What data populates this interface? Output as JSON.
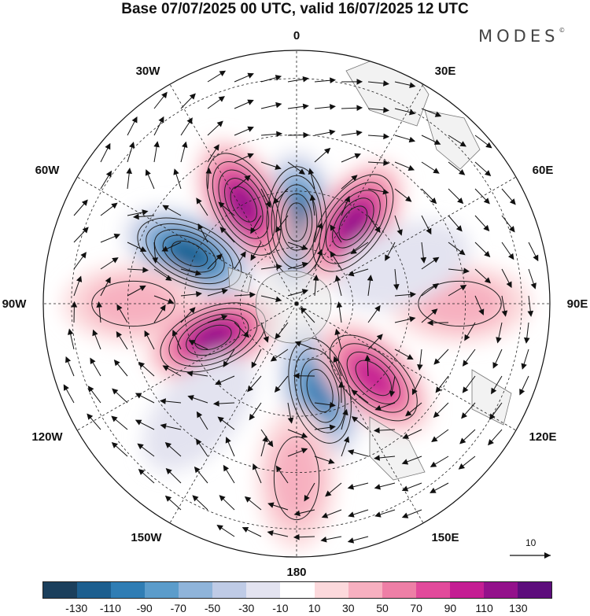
{
  "title": "Base 07/07/2025 00 UTC, valid 16/07/2025 12 UTC",
  "brand": {
    "name": "MODES",
    "mark": "©"
  },
  "longitude_labels": {
    "top": "0",
    "top_right": "30E",
    "right_upper": "60E",
    "right": "90E",
    "right_lower": "120E",
    "bottom_right": "150E",
    "bottom": "180",
    "bottom_left": "150W",
    "left_lower": "120W",
    "left": "90W",
    "left_upper": "60W",
    "top_left": "30W"
  },
  "vector_reference": {
    "value": "10"
  },
  "colorbar": {
    "colors": [
      "#1b3f5c",
      "#1d5f8f",
      "#2f7db4",
      "#5b9ccb",
      "#8fb4da",
      "#bfcbe6",
      "#e3e3f0",
      "#ffffff",
      "#fcd9dc",
      "#f7b0c0",
      "#ee7fa6",
      "#e24a9b",
      "#c41e93",
      "#93118b",
      "#5d0d7c"
    ],
    "tick_labels": [
      "-130",
      "-110",
      "-90",
      "-70",
      "-50",
      "-30",
      "-10",
      "10",
      "30",
      "50",
      "70",
      "90",
      "110",
      "130"
    ]
  },
  "anomaly_centers": [
    {
      "lon": 0,
      "colat": 29,
      "value": -120
    },
    {
      "lon": 35,
      "colat": 35,
      "value": 115
    },
    {
      "lon": -28,
      "colat": 40,
      "value": 125
    },
    {
      "lon": -65,
      "colat": 42,
      "value": -120
    },
    {
      "lon": -90,
      "colat": 58,
      "value": 45
    },
    {
      "lon": -112,
      "colat": 32,
      "value": 110
    },
    {
      "lon": 165,
      "colat": 32,
      "value": -105
    },
    {
      "lon": 134,
      "colat": 38,
      "value": 100
    },
    {
      "lon": 90,
      "colat": 58,
      "value": 45
    },
    {
      "lon": 180,
      "colat": 62,
      "value": 40
    },
    {
      "lon": 70,
      "colat": 40,
      "value": -25
    },
    {
      "lon": -138,
      "colat": 52,
      "value": -20
    }
  ]
}
